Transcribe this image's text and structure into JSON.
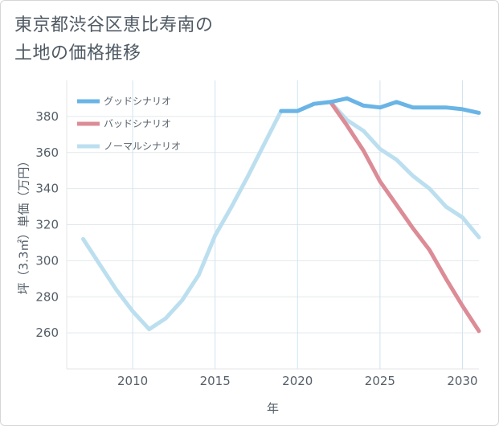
{
  "title": {
    "line1": "東京都渋谷区恵比寿南の",
    "line2": "土地の価格推移"
  },
  "chart_data": {
    "type": "line",
    "xlabel": "年",
    "ylabel": "坪（3.3㎡）単価（万円）",
    "xlim": [
      2006,
      2031
    ],
    "ylim": [
      240,
      400
    ],
    "xticks": [
      2010,
      2015,
      2020,
      2025,
      2030
    ],
    "yticks": [
      260,
      280,
      300,
      320,
      340,
      360,
      380
    ],
    "grid": true,
    "legend_position": "top-left",
    "series": [
      {
        "name": "ノーマルシナリオ",
        "color": "#bcdff0",
        "x": [
          2007,
          2008,
          2009,
          2010,
          2011,
          2012,
          2013,
          2014,
          2015,
          2016,
          2017,
          2018,
          2019,
          2020,
          2021,
          2022,
          2023,
          2024,
          2025,
          2026,
          2027,
          2028,
          2029,
          2030,
          2031
        ],
        "values": [
          312,
          298,
          284,
          272,
          262,
          268,
          278,
          292,
          314,
          330,
          347,
          365,
          383,
          383,
          387,
          388,
          378,
          372,
          362,
          356,
          347,
          340,
          330,
          324,
          313
        ]
      },
      {
        "name": "バッドシナリオ",
        "color": "#dc8c96",
        "x": [
          2022,
          2023,
          2024,
          2025,
          2026,
          2027,
          2028,
          2029,
          2030,
          2031
        ],
        "values": [
          388,
          375,
          361,
          344,
          331,
          318,
          306,
          290,
          275,
          261
        ]
      },
      {
        "name": "グッドシナリオ",
        "color": "#6ab4e6",
        "x": [
          2019,
          2020,
          2021,
          2022,
          2023,
          2024,
          2025,
          2026,
          2027,
          2028,
          2029,
          2030,
          2031
        ],
        "values": [
          383,
          383,
          387,
          388,
          390,
          386,
          385,
          388,
          385,
          385,
          385,
          384,
          382
        ]
      }
    ],
    "legend": [
      "グッドシナリオ",
      "バッドシナリオ",
      "ノーマルシナリオ"
    ]
  }
}
